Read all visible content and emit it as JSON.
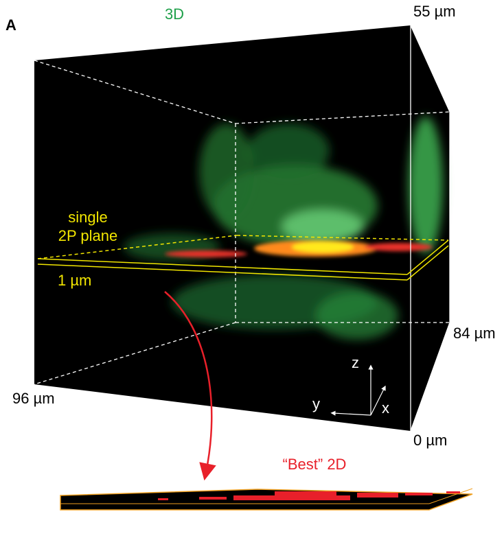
{
  "panel_label": "A",
  "title_3d": "3D",
  "axis_labels": {
    "top": "55 µm",
    "right": "84 µm",
    "left": "96 µm",
    "bottom": "0 µm"
  },
  "plane_label": {
    "line1": "single",
    "line2": "2P plane",
    "thickness": "1  µm"
  },
  "axes": {
    "z": "z",
    "y": "y",
    "x": "x"
  },
  "title_2d": "“Best” 2D"
}
